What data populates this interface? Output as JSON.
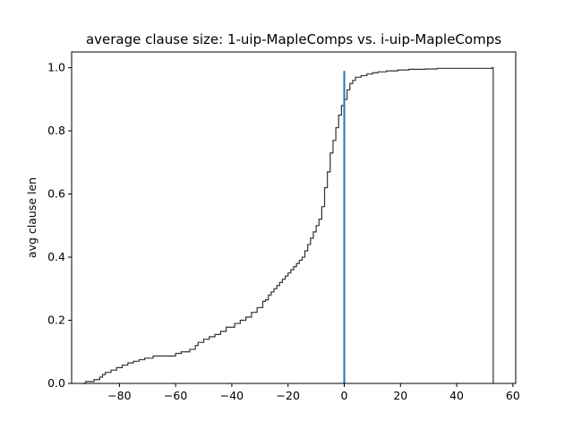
{
  "chart_data": {
    "type": "line",
    "title": "average clause size: 1-uip-MapleComps vs. i-uip-MapleComps",
    "xlabel": "",
    "ylabel": "avg clause len",
    "xlim": [
      -97,
      61
    ],
    "ylim": [
      0,
      1.05
    ],
    "x_ticks": [
      -80,
      -60,
      -40,
      -20,
      0,
      20,
      40,
      60
    ],
    "x_tick_labels": [
      "−80",
      "−60",
      "−40",
      "−20",
      "0",
      "20",
      "40",
      "60"
    ],
    "y_ticks": [
      0.0,
      0.2,
      0.4,
      0.6,
      0.8,
      1.0
    ],
    "y_tick_labels": [
      "0.0",
      "0.2",
      "0.4",
      "0.6",
      "0.8",
      "1.0"
    ],
    "grid": false,
    "series": [
      {
        "style": "step",
        "color": "#333333",
        "x": [
          -93,
          -92,
          -89,
          -87,
          -86,
          -85,
          -83,
          -81,
          -79,
          -77,
          -75,
          -73,
          -71,
          -68,
          -66,
          -60,
          -58,
          -55,
          -53,
          -52,
          -50,
          -48,
          -46,
          -44,
          -42,
          -39,
          -37,
          -35,
          -33,
          -31,
          -29,
          -28,
          -27,
          -26,
          -25,
          -24,
          -23,
          -22,
          -21,
          -20,
          -19,
          -18,
          -17,
          -16,
          -15,
          -14,
          -13,
          -12,
          -11,
          -10,
          -9,
          -8,
          -7,
          -6,
          -5,
          -4,
          -3,
          -2,
          -1,
          0,
          1,
          2,
          3,
          4,
          6,
          8,
          10,
          12,
          15,
          19,
          23,
          29,
          33,
          52.5,
          53
        ],
        "y": [
          0.0,
          0.006,
          0.012,
          0.02,
          0.028,
          0.035,
          0.042,
          0.05,
          0.058,
          0.065,
          0.07,
          0.075,
          0.08,
          0.087,
          0.087,
          0.095,
          0.1,
          0.108,
          0.12,
          0.13,
          0.14,
          0.148,
          0.155,
          0.165,
          0.178,
          0.19,
          0.2,
          0.21,
          0.225,
          0.24,
          0.26,
          0.265,
          0.28,
          0.29,
          0.3,
          0.31,
          0.32,
          0.33,
          0.34,
          0.35,
          0.36,
          0.37,
          0.38,
          0.39,
          0.4,
          0.42,
          0.44,
          0.46,
          0.48,
          0.5,
          0.52,
          0.56,
          0.62,
          0.67,
          0.73,
          0.77,
          0.81,
          0.85,
          0.88,
          0.9,
          0.93,
          0.95,
          0.96,
          0.97,
          0.975,
          0.98,
          0.984,
          0.987,
          0.99,
          0.993,
          0.995,
          0.996,
          0.998,
          1.0,
          0.0
        ]
      },
      {
        "style": "vline",
        "color": "#1f77b4",
        "x": [
          0,
          0
        ],
        "y": [
          0,
          0.99
        ]
      }
    ]
  }
}
